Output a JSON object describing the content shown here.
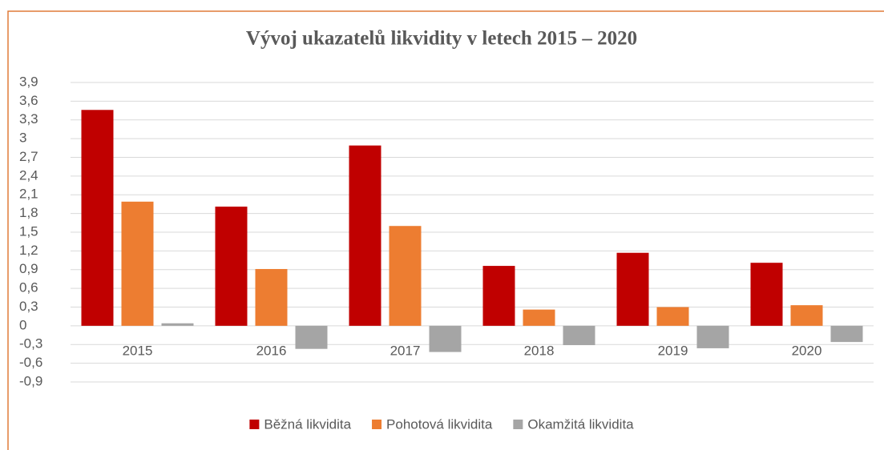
{
  "chart_data": {
    "type": "bar",
    "title": "Vývoj ukazatelů likvidity v letech 2015 – 2020",
    "categories": [
      "2015",
      "2016",
      "2017",
      "2018",
      "2019",
      "2020"
    ],
    "series": [
      {
        "name": "Běžná likvidita",
        "color": "#c00000",
        "values": [
          3.46,
          1.91,
          2.89,
          0.96,
          1.17,
          1.01
        ]
      },
      {
        "name": "Pohotová likvidita",
        "color": "#ed7d31",
        "values": [
          1.99,
          0.91,
          1.6,
          0.26,
          0.3,
          0.33
        ]
      },
      {
        "name": "Okamžitá likvidita",
        "color": "#a5a5a5",
        "values": [
          0.04,
          -0.37,
          -0.42,
          -0.31,
          -0.36,
          -0.26
        ]
      }
    ],
    "ylim": [
      -0.9,
      3.9
    ],
    "yticks": [
      {
        "value": 3.9,
        "label": "3,9"
      },
      {
        "value": 3.6,
        "label": "3,6"
      },
      {
        "value": 3.3,
        "label": "3,3"
      },
      3,
      {
        "value": 2.7,
        "label": "2,7"
      },
      {
        "value": 2.4,
        "label": "2,4"
      },
      {
        "value": 2.1,
        "label": "2,1"
      },
      {
        "value": 1.8,
        "label": "1,8"
      },
      {
        "value": 1.5,
        "label": "1,5"
      },
      {
        "value": 1.2,
        "label": "1,2"
      },
      {
        "value": 0.9,
        "label": "0,9"
      },
      {
        "value": 0.6,
        "label": "0,6"
      },
      {
        "value": 0.3,
        "label": "0,3"
      },
      0,
      {
        "value": -0.3,
        "label": "-0,3"
      },
      {
        "value": -0.6,
        "label": "-0,6"
      },
      {
        "value": -0.9,
        "label": "-0,9"
      }
    ],
    "grid": true,
    "legend": "bottom"
  }
}
